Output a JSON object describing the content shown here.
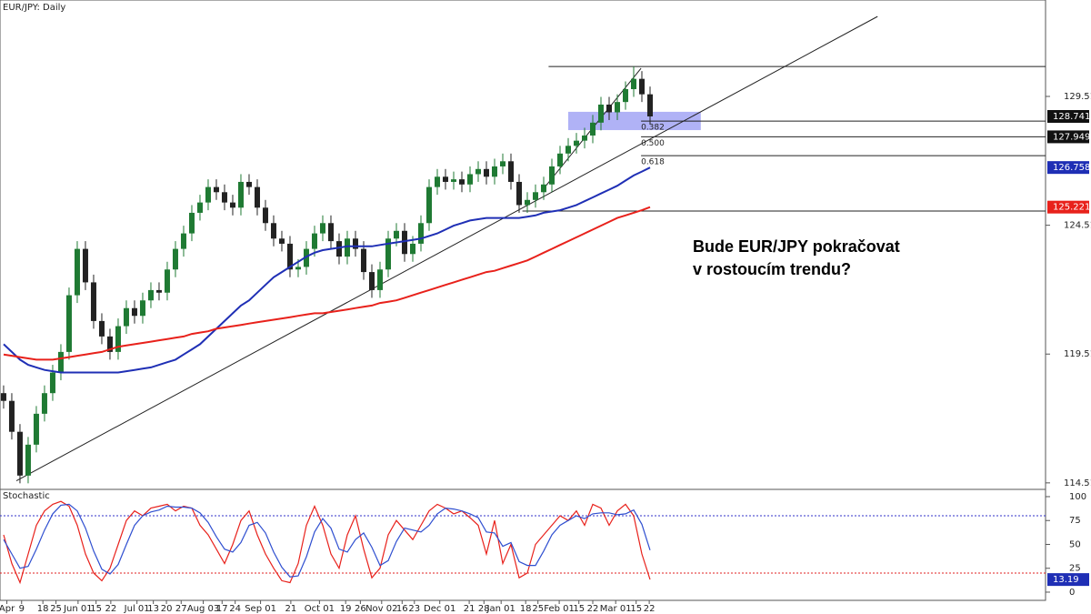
{
  "chart_data": [
    {
      "type": "candlestick",
      "title": "EUR/JPY: Daily",
      "annotation": [
        "Bude EUR/JPY pokračovat",
        "v rostoucím trendu?"
      ],
      "xlim": [
        -0.44,
        127.33
      ],
      "ylim": [
        114.3,
        133.26
      ],
      "yticks": [
        114.517,
        119.517,
        124.517,
        129.517
      ],
      "xticks": [
        {
          "value": 0.4,
          "label": "Apr"
        },
        {
          "value": 2.2,
          "label": "9"
        },
        {
          "value": 4.8,
          "label": "18"
        },
        {
          "value": 6.4,
          "label": "25"
        },
        {
          "value": 9.1,
          "label": "Jun 01"
        },
        {
          "value": 11.3,
          "label": "15"
        },
        {
          "value": 13.1,
          "label": "22"
        },
        {
          "value": 16.3,
          "label": "Jul 01"
        },
        {
          "value": 18.3,
          "label": "13"
        },
        {
          "value": 19.9,
          "label": "20"
        },
        {
          "value": 21.7,
          "label": "27"
        },
        {
          "value": 24.4,
          "label": "Aug 03"
        },
        {
          "value": 26.7,
          "label": "17"
        },
        {
          "value": 28.3,
          "label": "24"
        },
        {
          "value": 31.4,
          "label": "Sep 01"
        },
        {
          "value": 35.1,
          "label": "21"
        },
        {
          "value": 38.6,
          "label": "Oct 01"
        },
        {
          "value": 41.8,
          "label": "19"
        },
        {
          "value": 43.6,
          "label": "26"
        },
        {
          "value": 46.2,
          "label": "Nov 02"
        },
        {
          "value": 48.7,
          "label": "16"
        },
        {
          "value": 50.2,
          "label": "23"
        },
        {
          "value": 53.3,
          "label": "Dec 01"
        },
        {
          "value": 56.9,
          "label": "21"
        },
        {
          "value": 58.7,
          "label": "28"
        },
        {
          "value": 60.8,
          "label": "Jan 01"
        },
        {
          "value": 63.8,
          "label": "18"
        },
        {
          "value": 65.3,
          "label": "25"
        },
        {
          "value": 67.9,
          "label": "Feb 01"
        },
        {
          "value": 70.3,
          "label": "15"
        },
        {
          "value": 72,
          "label": "22"
        },
        {
          "value": 74.8,
          "label": "Mar 01"
        },
        {
          "value": 77.3,
          "label": "15"
        },
        {
          "value": 78.9,
          "label": "22"
        }
      ],
      "up_color": "#1f7a33",
      "down_color": "#222222",
      "open": [
        118.0,
        117.7,
        116.5,
        114.8,
        116.0,
        117.2,
        118.0,
        118.8,
        119.6,
        121.8,
        123.6,
        122.3,
        120.8,
        120.2,
        119.6,
        120.6,
        121.3,
        121.0,
        121.6,
        122.0,
        121.9,
        122.8,
        123.6,
        124.2,
        125.0,
        125.4,
        126.0,
        125.8,
        125.4,
        125.2,
        126.2,
        126.0,
        125.2,
        124.6,
        124.0,
        123.8,
        122.8,
        122.9,
        123.6,
        124.2,
        124.6,
        123.9,
        123.3,
        124.0,
        123.6,
        122.7,
        122.0,
        122.8,
        124.0,
        124.3,
        123.4,
        123.8,
        124.6,
        126.0,
        126.4,
        126.2,
        126.3,
        126.1,
        126.5,
        126.7,
        126.4,
        126.8,
        127.0,
        126.2,
        125.3,
        125.5,
        125.8,
        126.1,
        126.8,
        127.3,
        127.6,
        127.8,
        128.0,
        128.5,
        129.2,
        128.9,
        129.3,
        129.8,
        130.2,
        129.6
      ],
      "high": [
        118.3,
        118.0,
        116.8,
        116.3,
        117.5,
        118.3,
        119.1,
        119.9,
        122.1,
        123.9,
        123.9,
        122.6,
        121.1,
        120.5,
        120.9,
        121.6,
        121.6,
        121.9,
        122.3,
        122.3,
        123.1,
        123.9,
        124.5,
        125.3,
        125.7,
        126.3,
        126.3,
        126.1,
        125.7,
        126.5,
        126.5,
        126.3,
        125.5,
        124.9,
        124.3,
        124.1,
        123.2,
        123.9,
        124.5,
        124.9,
        124.9,
        124.2,
        124.3,
        124.3,
        123.9,
        123.0,
        123.1,
        124.3,
        124.6,
        124.6,
        124.1,
        124.9,
        126.3,
        126.7,
        126.7,
        126.6,
        126.6,
        126.8,
        127.0,
        127.0,
        127.1,
        127.3,
        127.3,
        126.5,
        125.8,
        126.1,
        126.4,
        127.1,
        127.6,
        127.9,
        128.1,
        128.3,
        128.8,
        129.5,
        129.5,
        129.6,
        130.1,
        130.68,
        130.5,
        129.9
      ],
      "low": [
        117.4,
        116.2,
        114.5,
        114.5,
        115.7,
        116.9,
        117.7,
        118.5,
        119.3,
        121.5,
        122.0,
        120.5,
        119.9,
        119.3,
        119.3,
        120.3,
        120.7,
        120.7,
        121.3,
        121.6,
        121.6,
        122.5,
        123.3,
        123.9,
        124.7,
        125.1,
        125.5,
        125.1,
        124.9,
        124.9,
        125.7,
        124.9,
        124.3,
        123.7,
        123.5,
        122.5,
        122.5,
        122.6,
        123.3,
        123.9,
        123.6,
        123.0,
        123.0,
        123.3,
        122.4,
        121.7,
        121.7,
        122.5,
        123.7,
        123.1,
        123.1,
        123.5,
        124.3,
        125.7,
        125.9,
        125.9,
        125.8,
        125.8,
        126.2,
        126.1,
        126.1,
        126.5,
        125.9,
        125.0,
        125.0,
        125.2,
        125.5,
        125.8,
        126.5,
        127.0,
        127.3,
        127.5,
        127.7,
        128.2,
        128.6,
        128.6,
        129.0,
        129.5,
        129.3,
        128.44
      ],
      "close": [
        117.7,
        116.5,
        114.8,
        116.0,
        117.2,
        118.0,
        118.8,
        119.6,
        121.8,
        123.6,
        122.3,
        120.8,
        120.2,
        119.6,
        120.6,
        121.3,
        121.0,
        121.6,
        122.0,
        121.9,
        122.8,
        123.6,
        124.2,
        125.0,
        125.4,
        126.0,
        125.8,
        125.4,
        125.2,
        126.2,
        126.0,
        125.2,
        124.6,
        124.0,
        123.8,
        122.8,
        122.9,
        123.6,
        124.2,
        124.6,
        123.9,
        123.3,
        124.0,
        123.6,
        122.7,
        122.0,
        122.8,
        124.0,
        124.3,
        123.4,
        123.8,
        124.6,
        126.0,
        126.4,
        126.2,
        126.3,
        126.1,
        126.5,
        126.7,
        126.4,
        126.8,
        127.0,
        126.2,
        125.3,
        125.5,
        125.8,
        126.1,
        126.8,
        127.3,
        127.6,
        127.8,
        128.0,
        128.5,
        129.2,
        128.9,
        129.3,
        129.8,
        130.2,
        129.6,
        128.741
      ],
      "series": [
        {
          "color": "#1f2fb5",
          "values": [
            119.9,
            119.6,
            119.3,
            119.1,
            119.0,
            118.9,
            118.85,
            118.8,
            118.8,
            118.8,
            118.8,
            118.8,
            118.8,
            118.8,
            118.8,
            118.85,
            118.9,
            118.95,
            119.0,
            119.1,
            119.2,
            119.3,
            119.5,
            119.7,
            119.9,
            120.2,
            120.5,
            120.8,
            121.1,
            121.4,
            121.6,
            121.9,
            122.2,
            122.5,
            122.7,
            122.9,
            123.1,
            123.3,
            123.45,
            123.55,
            123.6,
            123.65,
            123.7,
            123.7,
            123.7,
            123.7,
            123.75,
            123.8,
            123.85,
            123.9,
            123.95,
            124.0,
            124.1,
            124.2,
            124.35,
            124.5,
            124.6,
            124.7,
            124.75,
            124.8,
            124.8,
            124.8,
            124.8,
            124.8,
            124.85,
            124.9,
            125.0,
            125.05,
            125.1,
            125.2,
            125.3,
            125.45,
            125.6,
            125.75,
            125.9,
            126.05,
            126.25,
            126.45,
            126.6,
            126.758
          ]
        },
        {
          "color": "#e8211b",
          "values": [
            119.5,
            119.45,
            119.4,
            119.35,
            119.3,
            119.3,
            119.3,
            119.35,
            119.4,
            119.45,
            119.5,
            119.55,
            119.6,
            119.7,
            119.8,
            119.85,
            119.9,
            119.95,
            120.0,
            120.05,
            120.1,
            120.15,
            120.2,
            120.3,
            120.35,
            120.4,
            120.5,
            120.55,
            120.6,
            120.65,
            120.7,
            120.75,
            120.8,
            120.85,
            120.9,
            120.95,
            121.0,
            121.05,
            121.1,
            121.1,
            121.15,
            121.2,
            121.25,
            121.3,
            121.35,
            121.4,
            121.5,
            121.55,
            121.6,
            121.7,
            121.8,
            121.9,
            122.0,
            122.1,
            122.2,
            122.3,
            122.4,
            122.5,
            122.6,
            122.7,
            122.75,
            122.85,
            122.95,
            123.05,
            123.15,
            123.3,
            123.45,
            123.6,
            123.75,
            123.9,
            124.05,
            124.2,
            124.35,
            124.5,
            124.65,
            124.8,
            124.9,
            125.0,
            125.1,
            125.221
          ]
        }
      ],
      "levels": [
        {
          "value": 130.68,
          "start": 66.6
        },
        {
          "value": 128.56,
          "start": 77.9,
          "label": "0.382"
        },
        {
          "value": 127.949,
          "start": 77.9,
          "label": "0.500"
        },
        {
          "value": 127.22,
          "start": 77.9,
          "label": "0.618"
        },
        {
          "value": 125.07,
          "start": 63.4
        }
      ],
      "trendlines": [
        {
          "x": [
            1.56,
            106.8
          ],
          "y": [
            114.6,
            132.62
          ]
        },
        {
          "x": [
            66.2,
            77.9
          ],
          "y": [
            126.02,
            130.61
          ]
        }
      ],
      "zone": {
        "x": [
          69,
          85.2
        ],
        "y": [
          128.21,
          128.92
        ],
        "color": "#7b7ff0"
      }
    },
    {
      "type": "line",
      "title": "Stochastic",
      "ylim": [
        -8.6,
        105.7
      ],
      "yticks": [
        0,
        25,
        50,
        75,
        100
      ],
      "levels": [
        {
          "value": 80,
          "color": "#3030c8"
        },
        {
          "value": 20,
          "color": "#e02020"
        }
      ],
      "series": [
        {
          "color": "#e8211b",
          "values": [
            60,
            30,
            10,
            40,
            70,
            85,
            92,
            95,
            90,
            70,
            40,
            20,
            12,
            25,
            50,
            75,
            85,
            80,
            88,
            90,
            92,
            85,
            90,
            88,
            70,
            60,
            45,
            30,
            50,
            75,
            85,
            60,
            40,
            25,
            12,
            10,
            30,
            70,
            90,
            70,
            40,
            25,
            60,
            80,
            45,
            15,
            25,
            60,
            75,
            65,
            55,
            70,
            85,
            92,
            88,
            82,
            85,
            78,
            70,
            40,
            75,
            30,
            50,
            15,
            20,
            50,
            60,
            70,
            80,
            75,
            85,
            70,
            92,
            88,
            70,
            85,
            92,
            80,
            40,
            13.19
          ]
        },
        {
          "color": "#2f4fd0",
          "values": [
            55,
            40,
            25,
            27,
            45,
            65,
            82,
            91,
            92,
            85,
            67,
            43,
            24,
            19,
            29,
            50,
            70,
            80,
            84,
            86,
            90,
            89,
            89,
            88,
            83,
            73,
            58,
            45,
            42,
            52,
            70,
            73,
            62,
            42,
            26,
            16,
            17,
            37,
            63,
            77,
            67,
            45,
            42,
            55,
            62,
            47,
            28,
            33,
            53,
            67,
            65,
            63,
            70,
            82,
            88,
            87,
            85,
            82,
            78,
            63,
            62,
            48,
            52,
            32,
            28,
            28,
            43,
            60,
            70,
            75,
            80,
            77,
            82,
            83,
            83,
            81,
            82,
            86,
            71,
            44
          ]
        }
      ]
    }
  ]
}
